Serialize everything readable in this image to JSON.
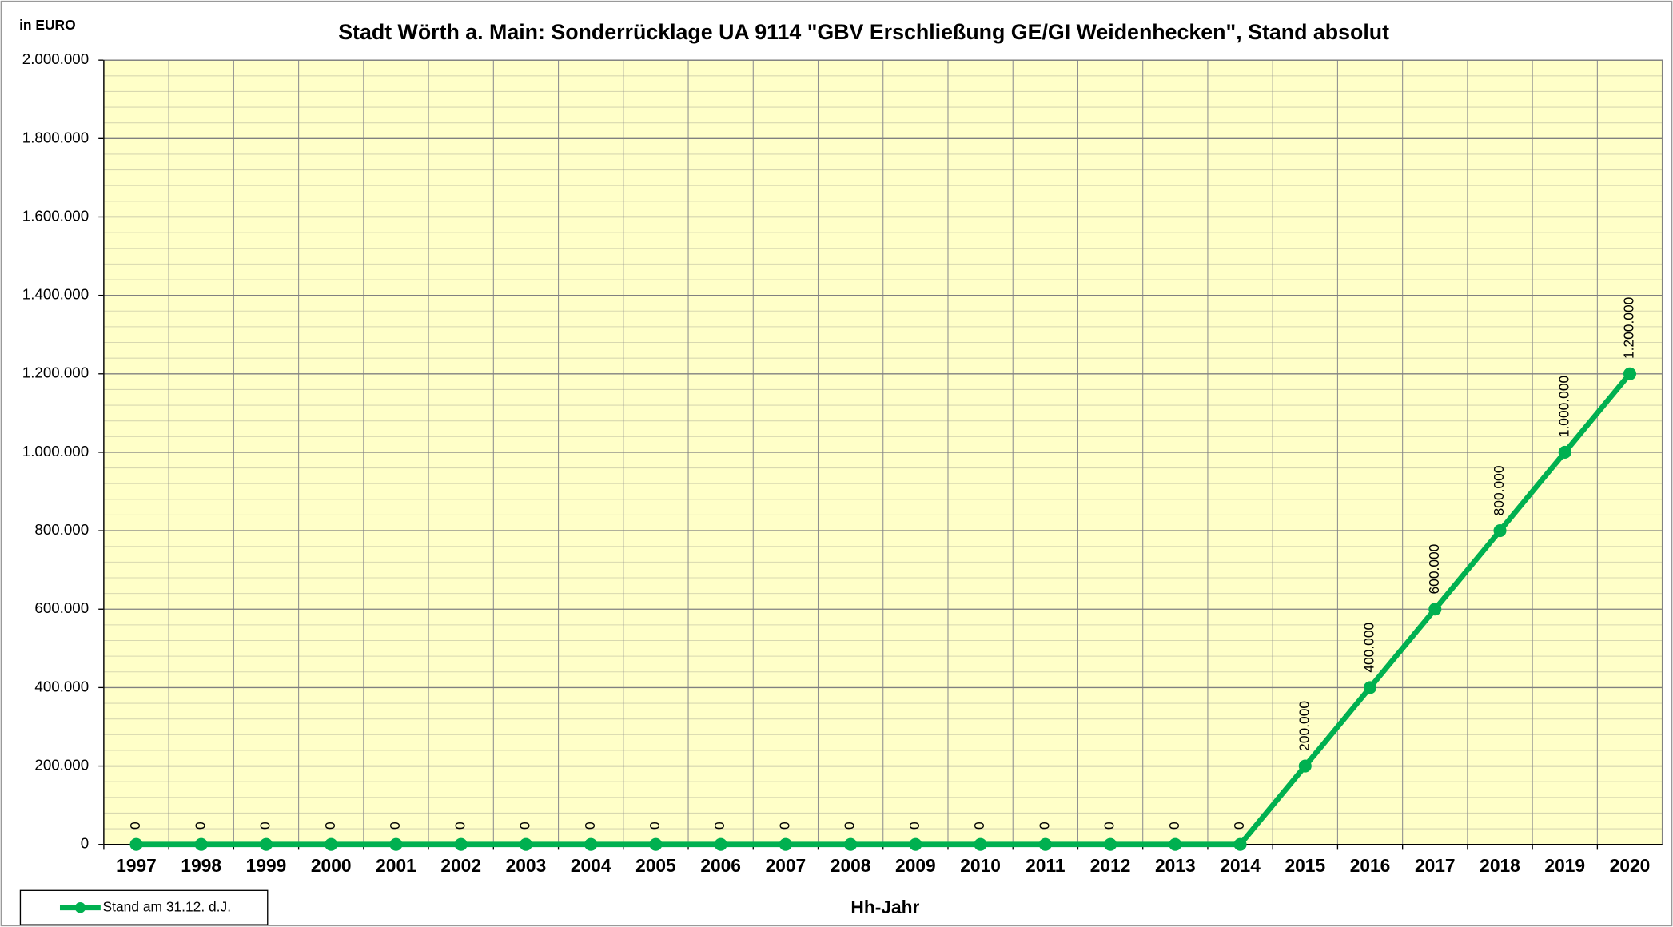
{
  "chart_data": {
    "type": "line",
    "title": "Stadt Wörth a. Main: Sonderrücklage UA 9114 \"GBV Erschließung GE/GI Weidenhecken\", Stand absolut",
    "y_label": "in EURO",
    "x_label": "Hh-Jahr",
    "categories": [
      "1997",
      "1998",
      "1999",
      "2000",
      "2001",
      "2002",
      "2003",
      "2004",
      "2005",
      "2006",
      "2007",
      "2008",
      "2009",
      "2010",
      "2011",
      "2012",
      "2013",
      "2014",
      "2015",
      "2016",
      "2017",
      "2018",
      "2019",
      "2020"
    ],
    "series": [
      {
        "name": "Stand am 31.12. d.J.",
        "color": "#00b050",
        "values": [
          0,
          0,
          0,
          0,
          0,
          0,
          0,
          0,
          0,
          0,
          0,
          0,
          0,
          0,
          0,
          0,
          0,
          0,
          200000,
          400000,
          600000,
          800000,
          1000000,
          1200000
        ],
        "value_labels": [
          "0",
          "0",
          "0",
          "0",
          "0",
          "0",
          "0",
          "0",
          "0",
          "0",
          "0",
          "0",
          "0",
          "0",
          "0",
          "0",
          "0",
          "0",
          "200.000",
          "400.000",
          "600.000",
          "800.000",
          "1.000.000",
          "1.200.000"
        ]
      }
    ],
    "ylim": [
      0,
      2000000
    ],
    "yticks": [
      0,
      {
        "value": 200000,
        "label": "200.000"
      },
      {
        "value": 400000,
        "label": "400.000"
      },
      {
        "value": 600000,
        "label": "600.000"
      },
      {
        "value": 800000,
        "label": "800.000"
      },
      {
        "value": 1000000,
        "label": "1.000.000"
      },
      {
        "value": 1200000,
        "label": "1.200.000"
      },
      {
        "value": 1400000,
        "label": "1.400.000"
      },
      {
        "value": 1600000,
        "label": "1.600.000"
      },
      {
        "value": 1800000,
        "label": "1.800.000"
      },
      {
        "value": 2000000,
        "label": "2.000.000"
      }
    ],
    "grid": true,
    "plot_background": "#ffffc8",
    "legend": "bottom-left"
  }
}
